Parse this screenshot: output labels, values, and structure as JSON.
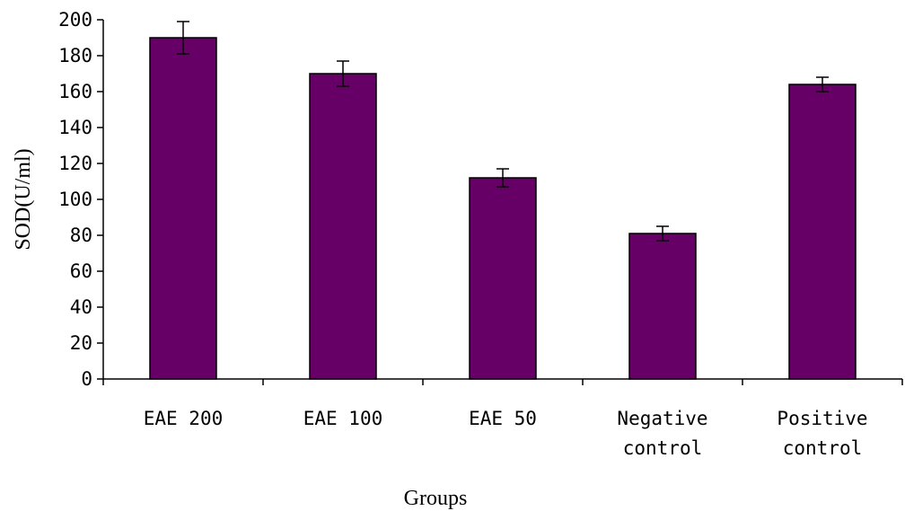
{
  "chart_data": {
    "type": "bar",
    "title": "",
    "xlabel": "Groups",
    "ylabel": "SOD(U/ml)",
    "ylim": [
      0,
      200
    ],
    "yticks": [
      0,
      20,
      40,
      60,
      80,
      100,
      120,
      140,
      160,
      180,
      200
    ],
    "grid": false,
    "legend": "none",
    "bar_color": "#660066",
    "categories": [
      [
        "EAE 200"
      ],
      [
        "EAE 100"
      ],
      [
        "EAE 50"
      ],
      [
        "Negative",
        "control"
      ],
      [
        "Positive",
        "control"
      ]
    ],
    "values": [
      190,
      170,
      112,
      81,
      164
    ],
    "errors": [
      9,
      7,
      5,
      4,
      4
    ]
  }
}
